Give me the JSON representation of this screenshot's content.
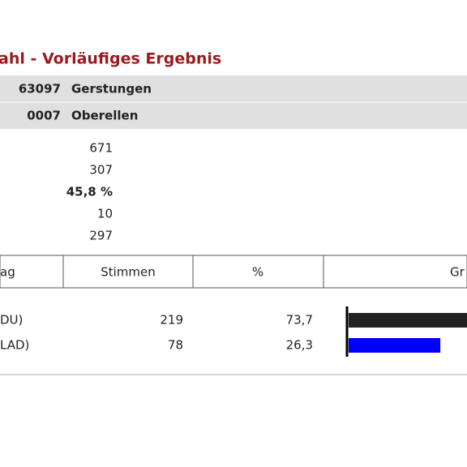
{
  "header": {
    "title": "ahl - Vorläufiges Ergebnis",
    "rows": [
      [
        "63097",
        "Gerstungen"
      ],
      [
        "0007",
        "Oberellen"
      ]
    ]
  },
  "stats": [
    "671",
    "307",
    "45,8 %",
    "10",
    "297"
  ],
  "table": {
    "columns": [
      "ag",
      "Stimmen",
      "%",
      "Gr"
    ],
    "rows": [
      {
        "name": "DU)",
        "votes": "219",
        "percent": {
          "value": 73.7,
          "label": "73,7"
        },
        "color": "#222222"
      },
      {
        "name": "LAD)",
        "votes": "78",
        "percent": {
          "value": 26.3,
          "label": "26,3"
        },
        "color": "#0000ff"
      }
    ]
  }
}
